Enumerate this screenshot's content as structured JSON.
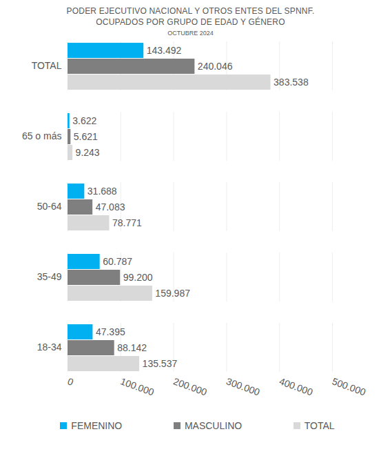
{
  "chart_data": {
    "type": "bar",
    "title": "PODER EJECUTIVO NACIONAL Y OTROS ENTES DEL SPNNF.\nOCUPADOS POR GRUPO DE EDAD Y GÉNERO",
    "subtitle": "OCTUBRE 2024",
    "orientation": "horizontal",
    "categories": [
      "TOTAL",
      "65 o más",
      "50-64",
      "35-49",
      "18-34"
    ],
    "series": [
      {
        "name": "FEMENINO",
        "color": "#00b0f0",
        "values": [
          143492,
          3622,
          31688,
          60787,
          47395
        ],
        "value_labels": [
          "143.492",
          "3.622",
          "31.688",
          "60.787",
          "47.395"
        ]
      },
      {
        "name": "MASCULINO",
        "color": "#7f7f7f",
        "values": [
          240046,
          5621,
          47083,
          99200,
          88142
        ],
        "value_labels": [
          "240.046",
          "5.621",
          "47.083",
          "99.200",
          "88.142"
        ]
      },
      {
        "name": "TOTAL",
        "color": "#d9d9d9",
        "values": [
          383538,
          9243,
          78771,
          159987,
          135537
        ],
        "value_labels": [
          "383.538",
          "9.243",
          "78.771",
          "159.987",
          "135.537"
        ]
      }
    ],
    "xlim": [
      0,
      500000
    ],
    "xticks": [
      0,
      {
        "value": 100000,
        "label": "100.000"
      },
      {
        "value": 200000,
        "label": "200.000"
      },
      {
        "value": 300000,
        "label": "300.000"
      },
      {
        "value": 400000,
        "label": "400.000"
      },
      {
        "value": 500000,
        "label": "500.000"
      }
    ],
    "grid": true,
    "legend": "bottom",
    "data_labels": true
  }
}
